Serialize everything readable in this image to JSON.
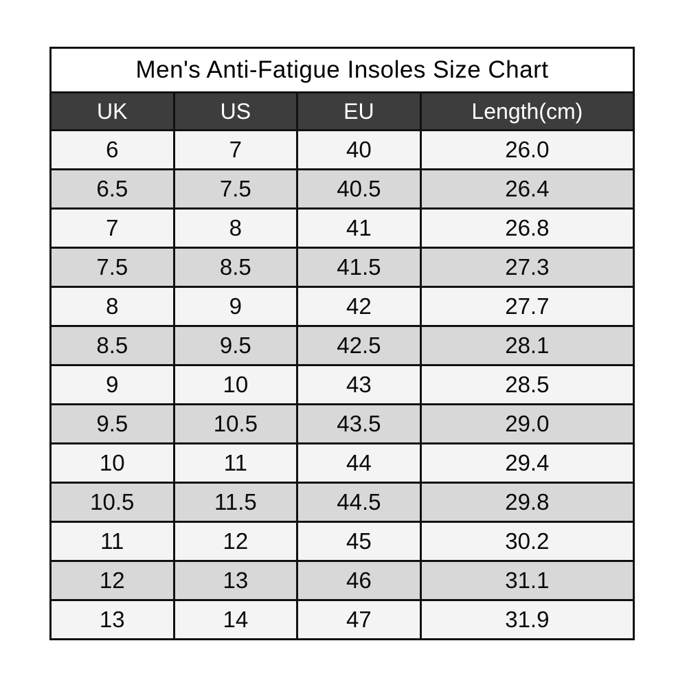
{
  "chart_data": {
    "type": "table",
    "title": "Men's Anti-Fatigue Insoles Size Chart",
    "columns": [
      "UK",
      "US",
      "EU",
      "Length(cm)"
    ],
    "rows": [
      [
        "6",
        "7",
        "40",
        "26.0"
      ],
      [
        "6.5",
        "7.5",
        "40.5",
        "26.4"
      ],
      [
        "7",
        "8",
        "41",
        "26.8"
      ],
      [
        "7.5",
        "8.5",
        "41.5",
        "27.3"
      ],
      [
        "8",
        "9",
        "42",
        "27.7"
      ],
      [
        "8.5",
        "9.5",
        "42.5",
        "28.1"
      ],
      [
        "9",
        "10",
        "43",
        "28.5"
      ],
      [
        "9.5",
        "10.5",
        "43.5",
        "29.0"
      ],
      [
        "10",
        "11",
        "44",
        "29.4"
      ],
      [
        "10.5",
        "11.5",
        "44.5",
        "29.8"
      ],
      [
        "11",
        "12",
        "45",
        "30.2"
      ],
      [
        "12",
        "13",
        "46",
        "31.1"
      ],
      [
        "13",
        "14",
        "47",
        "31.9"
      ]
    ],
    "layout": {
      "legend": "none",
      "grid": "full black gridlines",
      "row_striping": "alternating light/dark"
    },
    "colors": {
      "header_bg": "#3d3d3d",
      "header_text": "#ffffff",
      "row_light": "#f4f4f4",
      "row_dark": "#d8d8d8",
      "border": "#111111",
      "title_text": "#000000",
      "page_bg": "#ffffff"
    }
  }
}
